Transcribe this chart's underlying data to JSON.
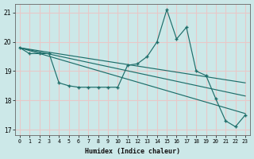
{
  "xlabel": "Humidex (Indice chaleur)",
  "xlim": [
    -0.5,
    23.5
  ],
  "ylim": [
    16.8,
    21.3
  ],
  "yticks": [
    17,
    18,
    19,
    20,
    21
  ],
  "xticks": [
    0,
    1,
    2,
    3,
    4,
    5,
    6,
    7,
    8,
    9,
    10,
    11,
    12,
    13,
    14,
    15,
    16,
    17,
    18,
    19,
    20,
    21,
    22,
    23
  ],
  "bg_color": "#cce8e8",
  "grid_color": "#e8c8c8",
  "line_color": "#1e6e6a",
  "main_x": [
    0,
    1,
    2,
    3,
    4,
    5,
    6,
    7,
    8,
    9,
    10,
    11,
    12,
    13,
    14,
    15,
    16,
    17,
    18,
    19,
    20,
    21,
    22,
    23
  ],
  "main_y": [
    19.8,
    19.6,
    19.6,
    19.6,
    18.6,
    18.5,
    18.45,
    18.45,
    18.45,
    18.45,
    18.45,
    19.2,
    19.25,
    19.5,
    20.0,
    21.1,
    20.1,
    20.5,
    19.0,
    18.85,
    18.05,
    17.3,
    17.1,
    17.5
  ],
  "trend1_x": [
    0,
    23
  ],
  "trend1_y": [
    19.8,
    17.55
  ],
  "trend2_x": [
    0,
    23
  ],
  "trend2_y": [
    19.8,
    18.6
  ],
  "trend3_x": [
    0,
    23
  ],
  "trend3_y": [
    19.8,
    18.15
  ]
}
